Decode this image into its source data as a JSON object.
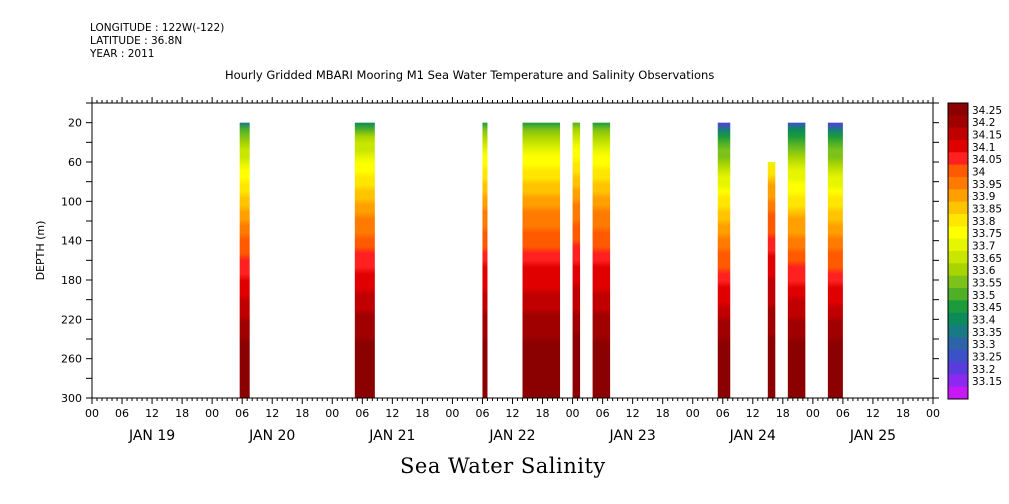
{
  "header": {
    "longitude": "LONGITUDE : 122W(-122)",
    "latitude": "LATITUDE : 36.8N",
    "year": "YEAR : 2011"
  },
  "chart_data": {
    "type": "heatmap",
    "title": "Hourly Gridded MBARI Mooring M1 Sea Water Temperature and Salinity Observations",
    "bottom_title": "Sea Water Salinity",
    "ylabel": "DEPTH (m)",
    "ylim": [
      300,
      0
    ],
    "y_ticks": [
      20,
      60,
      100,
      140,
      180,
      220,
      260,
      300
    ],
    "x_range_hours": [
      0,
      168
    ],
    "x_hour_ticks": [
      "00",
      "06",
      "12",
      "18",
      "00",
      "06",
      "12",
      "18",
      "00",
      "06",
      "12",
      "18",
      "00",
      "06",
      "12",
      "18",
      "00",
      "06",
      "12",
      "18",
      "00",
      "06",
      "12",
      "18",
      "00",
      "06",
      "12",
      "18",
      "00"
    ],
    "day_labels": [
      "JAN 19",
      "JAN 20",
      "JAN 21",
      "JAN 22",
      "JAN 23",
      "JAN 24",
      "JAN 25"
    ],
    "colorbar": {
      "levels": [
        "34.25",
        "34.2",
        "34.15",
        "34.1",
        "34.05",
        "34",
        "33.95",
        "33.9",
        "33.85",
        "33.8",
        "33.75",
        "33.7",
        "33.65",
        "33.6",
        "33.55",
        "33.5",
        "33.45",
        "33.4",
        "33.35",
        "33.3",
        "33.25",
        "33.2",
        "33.15"
      ],
      "colors": [
        "#8b0000",
        "#a00000",
        "#c00000",
        "#e00000",
        "#ff2020",
        "#ff5a00",
        "#ff7a00",
        "#ff9f00",
        "#ffc400",
        "#ffe600",
        "#ffff00",
        "#e6f500",
        "#c8e600",
        "#a8d400",
        "#7cc21a",
        "#4fb028",
        "#1c9a3c",
        "#0d8a5a",
        "#187a82",
        "#2d64a8",
        "#3c50c8",
        "#5a3cdc",
        "#8c28f0",
        "#c818f5"
      ]
    },
    "observation_segments": [
      {
        "start_hour": 29.5,
        "end_hour": 31.5,
        "top_depth": 20,
        "surface_salinity": 33.35
      },
      {
        "start_hour": 52.5,
        "end_hour": 56.5,
        "top_depth": 20,
        "surface_salinity": 33.4
      },
      {
        "start_hour": 78,
        "end_hour": 79,
        "top_depth": 20,
        "surface_salinity": 33.45
      },
      {
        "start_hour": 86,
        "end_hour": 93.5,
        "top_depth": 20,
        "surface_salinity": 33.45
      },
      {
        "start_hour": 96,
        "end_hour": 97.5,
        "top_depth": 20,
        "surface_salinity": 33.5
      },
      {
        "start_hour": 100,
        "end_hour": 103.5,
        "top_depth": 20,
        "surface_salinity": 33.45
      },
      {
        "start_hour": 125,
        "end_hour": 127.5,
        "top_depth": 20,
        "surface_salinity": 33.2
      },
      {
        "start_hour": 135,
        "end_hour": 136.5,
        "top_depth": 60,
        "surface_salinity": 33.7
      },
      {
        "start_hour": 139,
        "end_hour": 142.5,
        "top_depth": 20,
        "surface_salinity": 33.25
      },
      {
        "start_hour": 147,
        "end_hour": 150,
        "top_depth": 20,
        "surface_salinity": 33.2
      }
    ],
    "grid": false,
    "legend": "right"
  }
}
